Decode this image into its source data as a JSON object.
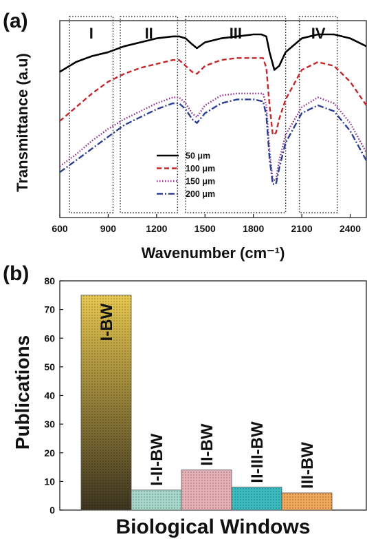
{
  "panel_a": {
    "label": "(a)",
    "ylabel": "Transmittance (a.u)",
    "xlabel": "Wavenumber (cm⁻¹)",
    "regions": [
      {
        "label": "I",
        "from": 660,
        "to": 930
      },
      {
        "label": "II",
        "from": 975,
        "to": 1330
      },
      {
        "label": "III",
        "from": 1380,
        "to": 2000
      },
      {
        "label": "IV",
        "from": 2085,
        "to": 2320
      }
    ]
  },
  "panel_b": {
    "label": "(b)",
    "ylabel": "Publications",
    "xlabel": "Biological Windows"
  },
  "chart_data": [
    {
      "type": "line",
      "xlabel": "Wavenumber (cm⁻¹)",
      "ylabel": "Transmittance (a.u)",
      "xlim": [
        600,
        2500
      ],
      "xticks": [
        600,
        900,
        1200,
        1500,
        1800,
        2100,
        2400
      ],
      "yticks_labeled": false,
      "ylim": [
        0,
        100
      ],
      "legend_position": "center-right",
      "series": [
        {
          "name": "50 μm",
          "color": "#000000",
          "dash": "solid",
          "x": [
            600,
            700,
            800,
            900,
            1000,
            1100,
            1200,
            1300,
            1340,
            1380,
            1420,
            1450,
            1500,
            1600,
            1700,
            1800,
            1850,
            1880,
            1900,
            1930,
            1960,
            2000,
            2100,
            2200,
            2300,
            2400,
            2500
          ],
          "y": [
            74,
            79,
            82,
            84,
            87,
            89,
            91,
            92,
            92,
            91,
            88,
            86,
            89,
            91,
            92,
            93,
            93,
            92,
            84,
            75,
            77,
            84,
            91,
            93,
            93,
            91,
            87
          ]
        },
        {
          "name": "100 μm",
          "color": "#c0282c",
          "dash": "dashed",
          "x": [
            600,
            700,
            800,
            900,
            1000,
            1100,
            1200,
            1300,
            1340,
            1380,
            1420,
            1450,
            1500,
            1600,
            1700,
            1800,
            1860,
            1880,
            1900,
            1920,
            1940,
            1960,
            2000,
            2100,
            2200,
            2300,
            2400,
            2500
          ],
          "y": [
            49,
            56,
            63,
            69,
            73,
            76,
            78,
            80,
            80,
            77,
            74,
            73,
            77,
            80,
            81,
            81,
            81,
            76,
            57,
            42,
            43,
            50,
            60,
            75,
            79,
            77,
            69,
            57
          ]
        },
        {
          "name": "150 μm",
          "color": "#8b2b8a",
          "dash": "dotted",
          "x": [
            600,
            700,
            800,
            900,
            1000,
            1100,
            1200,
            1300,
            1340,
            1380,
            1420,
            1450,
            1500,
            1600,
            1700,
            1800,
            1860,
            1880,
            1900,
            1920,
            1940,
            1960,
            2000,
            2100,
            2200,
            2300,
            2400,
            2500
          ],
          "y": [
            26,
            32,
            39,
            45,
            50,
            54,
            58,
            61,
            61,
            58,
            53,
            51,
            57,
            62,
            63,
            63,
            63,
            57,
            34,
            19,
            19,
            29,
            42,
            56,
            61,
            58,
            48,
            33
          ]
        },
        {
          "name": "200 μm",
          "color": "#2c3e8f",
          "dash": "dashdot",
          "x": [
            600,
            700,
            800,
            900,
            1000,
            1100,
            1200,
            1300,
            1340,
            1380,
            1420,
            1450,
            1500,
            1600,
            1700,
            1800,
            1860,
            1880,
            1900,
            1920,
            1940,
            1960,
            2000,
            2100,
            2200,
            2300,
            2400,
            2500
          ],
          "y": [
            23,
            29,
            35,
            41,
            47,
            51,
            55,
            58,
            58,
            55,
            50,
            48,
            53,
            58,
            60,
            60,
            59,
            52,
            30,
            17,
            17,
            25,
            38,
            53,
            57,
            54,
            44,
            29
          ]
        }
      ]
    },
    {
      "type": "bar",
      "xlabel": "Biological Windows",
      "ylabel": "Publications",
      "ylim": [
        0,
        80
      ],
      "yticks": [
        0,
        10,
        20,
        30,
        40,
        50,
        60,
        70,
        80
      ],
      "categories": [
        "I-BW",
        "I-II-BW",
        "II-BW",
        "II-III-BW",
        "III-BW"
      ],
      "values": [
        75,
        7,
        14,
        8,
        6
      ],
      "colors": [
        "#c4a33a",
        "#a8d8c9",
        "#e6b1b6",
        "#3bbcc1",
        "#f1a85a"
      ]
    }
  ]
}
